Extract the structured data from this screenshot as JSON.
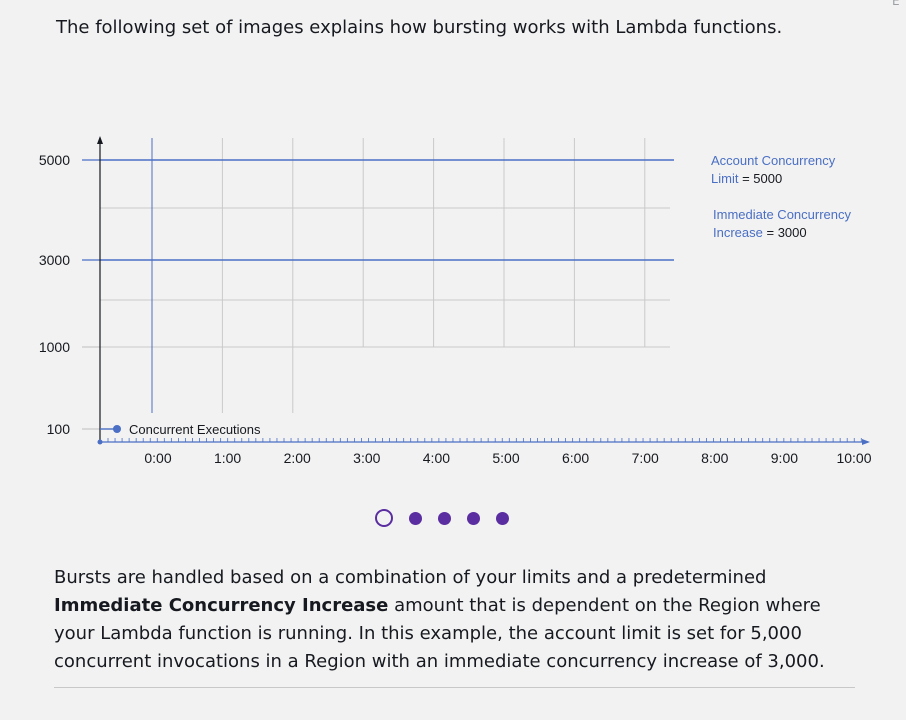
{
  "intro_text": "The following set of images explains how bursting works with Lambda functions.",
  "annotations": {
    "account_limit": {
      "line1": "Account Concurrency",
      "label": "Limit",
      "value": "= 5000"
    },
    "immediate_increase": {
      "line1": "Immediate Concurrency",
      "label": "Increase",
      "value": "= 3000"
    }
  },
  "chart_data": {
    "type": "line",
    "y_ticks": [
      "5000",
      "3000",
      "1000",
      "100"
    ],
    "x_ticks": [
      "0:00",
      "1:00",
      "2:00",
      "3:00",
      "4:00",
      "5:00",
      "6:00",
      "7:00",
      "8:00",
      "9:00",
      "10:00"
    ],
    "series": [
      {
        "name": "Concurrent Executions",
        "x": [
          "0:00"
        ],
        "y": [
          100
        ],
        "color": "#4a6fc4"
      }
    ],
    "reference_lines": [
      {
        "label": "Account Concurrency Limit = 5000",
        "y": 5000,
        "color": "#4a6fc4"
      },
      {
        "label": "Immediate Concurrency Increase = 3000",
        "y": 3000,
        "color": "#4a6fc4"
      }
    ],
    "grid": true,
    "colors": {
      "axis": "#16191f",
      "grid": "#c9c9c9",
      "accent": "#4a6fc4"
    }
  },
  "pager": {
    "total": 5,
    "active_index": 0,
    "color": "#5a2da0"
  },
  "description": {
    "part1": "Bursts are handled based on a combination of your limits and a predetermined ",
    "bold": "Immediate Concurrency Increase",
    "part2": " amount that is dependent on the Region where your Lambda function is running. In this example, the account limit is set for 5,000 concurrent invocations in a Region with an immediate concurrency increase of 3,000."
  }
}
